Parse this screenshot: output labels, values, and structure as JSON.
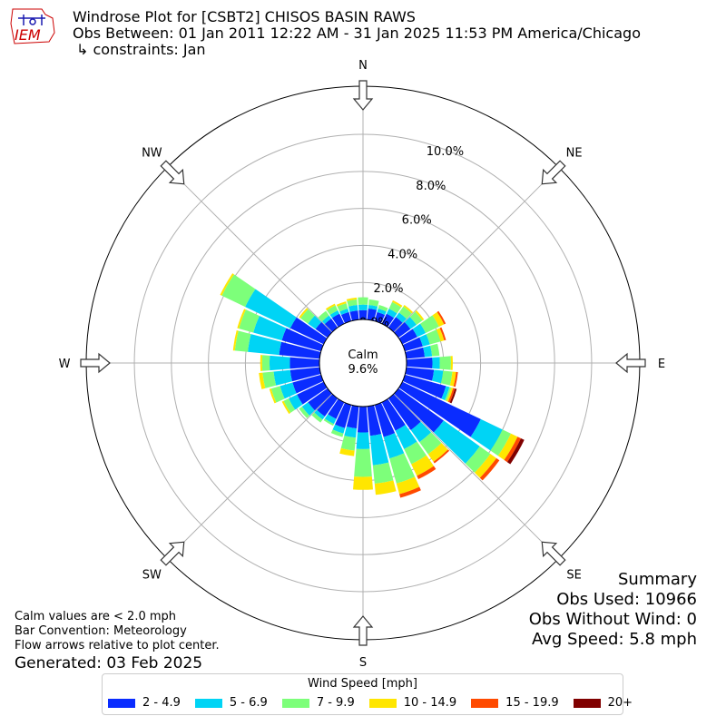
{
  "header": {
    "title": "Windrose Plot for [CSBT2] CHISOS BASIN RAWS",
    "period": "Obs Between: 01 Jan 2011 12:22 AM - 31 Jan 2025 11:53 PM America/Chicago",
    "constraints": "↳ constraints: Jan"
  },
  "logo": {
    "text": "IEM",
    "color": "#cc0000",
    "accent": "#1a1ab0"
  },
  "summary": {
    "title": "Summary",
    "obs_used": "Obs Used: 10966",
    "obs_without_wind": "Obs Without Wind: 0",
    "avg_speed": "Avg Speed: 5.8 mph"
  },
  "notes": {
    "calm": "Calm values are < 2.0 mph",
    "convention": "Bar Convention: Meteorology",
    "arrows": "Flow arrows relative to plot center.",
    "generated": "Generated: 03 Feb 2025"
  },
  "legend": {
    "title": "Wind Speed [mph]",
    "items": [
      {
        "label": "2 - 4.9",
        "color": "#0a2cff"
      },
      {
        "label": "5 - 6.9",
        "color": "#00d4f5"
      },
      {
        "label": "7 - 9.9",
        "color": "#7dff7a"
      },
      {
        "label": "10 - 14.9",
        "color": "#ffe600"
      },
      {
        "label": "15 - 19.9",
        "color": "#ff4a00"
      },
      {
        "label": "20+",
        "color": "#800000"
      }
    ]
  },
  "chart_data": {
    "type": "windrose",
    "center_label": "Calm",
    "center_value": "9.6%",
    "calm_percent": 9.6,
    "radial_ticks": [
      "0.0%",
      "2.0%",
      "4.0%",
      "6.0%",
      "8.0%",
      "10.0%"
    ],
    "radial_tick_values": [
      0,
      2,
      4,
      6,
      8,
      10
    ],
    "rmax": 12.6,
    "compass": [
      "N",
      "NE",
      "E",
      "SE",
      "S",
      "SW",
      "W",
      "NW"
    ],
    "bin_width_deg": 10,
    "bin_directions_deg": [
      0,
      10,
      20,
      30,
      40,
      50,
      60,
      70,
      80,
      90,
      100,
      110,
      120,
      130,
      140,
      150,
      160,
      170,
      180,
      190,
      200,
      210,
      220,
      230,
      240,
      250,
      260,
      270,
      280,
      290,
      300,
      310,
      320,
      330,
      340,
      350
    ],
    "speed_bins": [
      "2 - 4.9",
      "5 - 6.9",
      "7 - 9.9",
      "10 - 14.9",
      "15 - 19.9",
      "20+"
    ],
    "bin_colors": [
      "#0a2cff",
      "#00d4f5",
      "#7dff7a",
      "#ffe600",
      "#ff4a00",
      "#800000"
    ],
    "cumulative_percent": [
      [
        0.5,
        0.8,
        1.2,
        1.2,
        1.2,
        1.2
      ],
      [
        0.6,
        0.8,
        1.1,
        1.1,
        1.1,
        1.1
      ],
      [
        0.5,
        0.7,
        0.9,
        0.9,
        0.9,
        0.9
      ],
      [
        0.6,
        0.9,
        1.3,
        1.4,
        1.4,
        1.4
      ],
      [
        0.7,
        1.0,
        1.4,
        1.5,
        1.5,
        1.5
      ],
      [
        0.8,
        1.2,
        1.6,
        1.7,
        1.7,
        1.7
      ],
      [
        0.9,
        1.4,
        2.2,
        2.5,
        2.6,
        2.6
      ],
      [
        1.0,
        1.4,
        2.0,
        2.2,
        2.3,
        2.3
      ],
      [
        1.0,
        1.4,
        1.8,
        1.8,
        1.8,
        1.8
      ],
      [
        1.4,
        1.8,
        2.4,
        2.5,
        2.5,
        2.5
      ],
      [
        1.5,
        2.0,
        2.5,
        2.7,
        2.8,
        2.8
      ],
      [
        2.3,
        2.5,
        2.6,
        2.7,
        2.8,
        2.9
      ],
      [
        4.7,
        6.0,
        6.5,
        6.9,
        7.1,
        7.3
      ],
      [
        3.0,
        5.4,
        6.1,
        6.5,
        6.7,
        6.7
      ],
      [
        2.1,
        2.9,
        3.7,
        4.2,
        4.3,
        4.3
      ],
      [
        1.7,
        2.8,
        3.7,
        4.4,
        4.6,
        4.6
      ],
      [
        1.8,
        3.0,
        4.4,
        5.0,
        5.2,
        5.2
      ],
      [
        1.6,
        3.2,
        4.2,
        4.8,
        4.8,
        4.8
      ],
      [
        1.4,
        2.3,
        3.8,
        4.5,
        4.5,
        4.5
      ],
      [
        1.2,
        1.7,
        2.4,
        2.7,
        2.7,
        2.7
      ],
      [
        1.3,
        1.6,
        1.8,
        1.8,
        1.8,
        1.8
      ],
      [
        1.0,
        1.3,
        1.4,
        1.4,
        1.4,
        1.4
      ],
      [
        1.2,
        1.4,
        1.6,
        1.6,
        1.6,
        1.6
      ],
      [
        1.3,
        1.7,
        1.9,
        1.9,
        1.9,
        1.9
      ],
      [
        1.6,
        2.1,
        2.4,
        2.5,
        2.5,
        2.5
      ],
      [
        1.6,
        2.3,
        2.8,
        2.9,
        2.9,
        2.9
      ],
      [
        1.6,
        2.5,
        3.1,
        3.3,
        3.3,
        3.3
      ],
      [
        1.6,
        2.7,
        3.1,
        3.2,
        3.2,
        3.2
      ],
      [
        2.2,
        3.9,
        4.6,
        4.7,
        4.7,
        4.7
      ],
      [
        2.2,
        3.8,
        4.6,
        4.7,
        4.7,
        4.7
      ],
      [
        2.0,
        4.7,
        6.1,
        6.2,
        6.2,
        6.2
      ],
      [
        0.8,
        1.3,
        1.8,
        1.9,
        1.9,
        1.9
      ],
      [
        0.6,
        0.8,
        1.1,
        1.1,
        1.1,
        1.1
      ],
      [
        0.6,
        0.8,
        1.1,
        1.2,
        1.2,
        1.2
      ],
      [
        0.5,
        0.7,
        1.0,
        1.1,
        1.1,
        1.1
      ],
      [
        0.5,
        0.8,
        1.1,
        1.2,
        1.2,
        1.2
      ]
    ]
  }
}
